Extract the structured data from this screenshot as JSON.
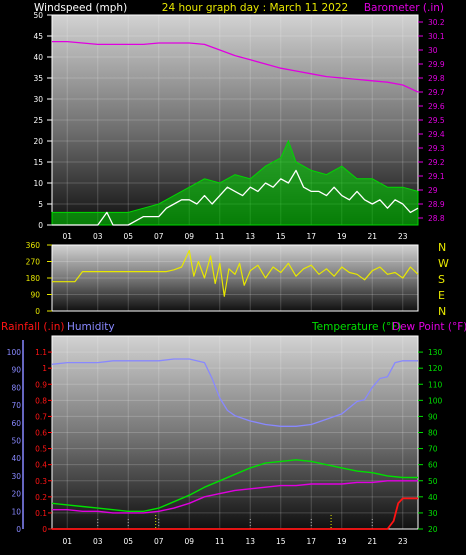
{
  "header": {
    "left": "Windspeed (mph)",
    "center": "24 hour graph day : March 11 2022",
    "right": "Barometer (.in)"
  },
  "bottom_header": {
    "rain": "Rainfall (.in)",
    "humidity": "Humidity",
    "temperature": "Temperature (°F)",
    "dewpoint": "Dew Point (°F)"
  },
  "compass": [
    "N",
    "W",
    "S",
    "E",
    "N"
  ],
  "colors": {
    "wind": "#ffffff",
    "gust_fill": "#00d800",
    "barometer": "#e000e0",
    "direction": "#e8e800",
    "rain": "#ff1414",
    "humidity": "#8888ff",
    "temperature": "#00e000",
    "dewpoint": "#e000e0",
    "center_title": "#e8e800",
    "header_text": "#ffffff"
  },
  "chart_data": [
    {
      "type": "line",
      "title": "24 hour graph day : March 11 2022",
      "xlabel": "",
      "x_ticks": [
        "01",
        "03",
        "05",
        "07",
        "09",
        "11",
        "13",
        "15",
        "17",
        "19",
        "21",
        "23"
      ],
      "xlim": [
        0,
        24
      ],
      "ylabel": "Windspeed (mph)",
      "ylim": [
        0,
        50
      ],
      "y_ticks": [
        0,
        5,
        10,
        15,
        20,
        25,
        30,
        35,
        40,
        45,
        50
      ],
      "y2label": "Barometer (.in)",
      "y2lim": [
        28.75,
        30.25
      ],
      "y2_ticks": [
        "28.8",
        "28.9",
        "29",
        "29.1",
        "29.2",
        "29.3",
        "29.4",
        "29.5",
        "29.6",
        "29.7",
        "29.8",
        "29.9",
        "30",
        "30.1",
        "30.2"
      ],
      "grid": true,
      "series": [
        {
          "name": "Windspeed",
          "axis": "left",
          "x": [
            0,
            1,
            2,
            3,
            3.6,
            4,
            5,
            6,
            7,
            7.5,
            8,
            8.5,
            9,
            9.5,
            10,
            10.5,
            11,
            11.5,
            12,
            12.5,
            13,
            13.5,
            14,
            14.5,
            15,
            15.5,
            16,
            16.5,
            17,
            17.5,
            18,
            18.5,
            19,
            19.5,
            20,
            20.5,
            21,
            21.5,
            22,
            22.5,
            23,
            23.5,
            24
          ],
          "y": [
            0,
            0,
            0,
            0,
            3,
            0,
            0,
            2,
            2,
            4,
            5,
            6,
            6,
            5,
            7,
            5,
            7,
            9,
            8,
            7,
            9,
            8,
            10,
            9,
            11,
            10,
            13,
            9,
            8,
            8,
            7,
            9,
            7,
            6,
            8,
            6,
            5,
            6,
            4,
            6,
            5,
            3,
            4
          ]
        },
        {
          "name": "Gust",
          "axis": "left",
          "x": [
            0,
            1,
            2,
            3,
            4,
            5,
            6,
            7,
            8,
            9,
            10,
            11,
            12,
            13,
            14,
            15,
            15.5,
            16,
            16.5,
            17,
            18,
            19,
            20,
            21,
            22,
            23,
            24
          ],
          "y": [
            3,
            3,
            3,
            3,
            3,
            3,
            4,
            5,
            7,
            9,
            11,
            10,
            12,
            11,
            14,
            16,
            20,
            15,
            14,
            13,
            12,
            14,
            11,
            11,
            9,
            9,
            8
          ]
        },
        {
          "name": "Barometer",
          "axis": "right",
          "x": [
            0,
            1,
            2,
            3,
            4,
            5,
            6,
            7,
            8,
            9,
            10,
            11,
            12,
            13,
            14,
            15,
            16,
            17,
            18,
            19,
            20,
            21,
            22,
            23,
            24
          ],
          "y": [
            30.06,
            30.06,
            30.05,
            30.04,
            30.04,
            30.04,
            30.04,
            30.05,
            30.05,
            30.05,
            30.04,
            30.0,
            29.96,
            29.93,
            29.9,
            29.87,
            29.85,
            29.83,
            29.81,
            29.8,
            29.79,
            29.78,
            29.77,
            29.75,
            29.7
          ]
        }
      ]
    },
    {
      "type": "line",
      "title": "",
      "xlabel": "",
      "xlim": [
        0,
        24
      ],
      "ylabel": "",
      "ylim": [
        0,
        360
      ],
      "y_ticks": [
        0,
        90,
        180,
        270,
        360
      ],
      "grid": true,
      "series": [
        {
          "name": "Wind direction",
          "axis": "left",
          "x": [
            0,
            1,
            1.5,
            2,
            3,
            4,
            5,
            6,
            7,
            7.5,
            8,
            8.5,
            9,
            9.3,
            9.6,
            10,
            10.4,
            10.7,
            11,
            11.3,
            11.6,
            12,
            12.3,
            12.6,
            13,
            13.5,
            14,
            14.5,
            15,
            15.5,
            16,
            16.5,
            17,
            17.5,
            18,
            18.5,
            19,
            19.5,
            20,
            20.5,
            21,
            21.5,
            22,
            22.5,
            23,
            23.5,
            24
          ],
          "y": [
            160,
            160,
            160,
            215,
            215,
            215,
            215,
            215,
            215,
            215,
            225,
            240,
            330,
            190,
            270,
            180,
            300,
            150,
            260,
            80,
            230,
            200,
            260,
            140,
            220,
            250,
            180,
            240,
            210,
            260,
            190,
            230,
            250,
            200,
            230,
            190,
            240,
            210,
            200,
            170,
            220,
            240,
            200,
            210,
            180,
            240,
            200
          ]
        }
      ]
    },
    {
      "type": "line",
      "title": "",
      "xlabel": "",
      "x_ticks": [
        "01",
        "03",
        "05",
        "07",
        "09",
        "11",
        "13",
        "15",
        "17",
        "19",
        "21",
        "23"
      ],
      "xlim": [
        0,
        24
      ],
      "ylabel": "Rainfall (.in)",
      "ylim": [
        0,
        1.2
      ],
      "y_ticks": [
        0,
        0.1,
        0.2,
        0.3,
        0.4,
        0.5,
        0.6,
        0.7,
        0.8,
        0.9,
        1,
        1.1
      ],
      "humidity_ticks": [
        0,
        10,
        20,
        30,
        40,
        50,
        60,
        70,
        80,
        90,
        100
      ],
      "y2label": "Temperature (°F)",
      "y2lim": [
        20,
        140
      ],
      "y2_ticks": [
        20,
        30,
        40,
        50,
        60,
        70,
        80,
        90,
        100,
        110,
        120,
        130
      ],
      "grid": true,
      "series": [
        {
          "name": "Rainfall",
          "axis": "rain",
          "x": [
            0,
            1,
            2,
            3,
            4,
            5,
            6,
            7,
            8,
            9,
            10,
            11,
            12,
            13,
            14,
            15,
            16,
            17,
            18,
            19,
            20,
            21,
            22,
            22.4,
            22.7,
            23,
            23.5,
            24
          ],
          "y": [
            0,
            0,
            0,
            0,
            0,
            0,
            0,
            0,
            0,
            0,
            0,
            0,
            0,
            0,
            0,
            0,
            0,
            0,
            0,
            0,
            0,
            0,
            0,
            0.05,
            0.16,
            0.19,
            0.19,
            0.19
          ]
        },
        {
          "name": "Humidity",
          "axis": "humidity",
          "x": [
            0,
            1,
            2,
            3,
            4,
            5,
            6,
            7,
            8,
            9,
            10,
            10.5,
            11,
            11.5,
            12,
            13,
            14,
            15,
            16,
            17,
            18,
            19,
            20,
            20.5,
            21,
            21.5,
            22,
            22.5,
            23,
            23.5,
            24
          ],
          "y": [
            93,
            94,
            94,
            94,
            95,
            95,
            95,
            95,
            96,
            96,
            94,
            85,
            74,
            67,
            64,
            61,
            59,
            58,
            58,
            59,
            62,
            65,
            72,
            73,
            80,
            85,
            86,
            94,
            95,
            95,
            95
          ]
        },
        {
          "name": "Temperature",
          "axis": "right",
          "x": [
            0,
            1,
            2,
            3,
            4,
            5,
            6,
            7,
            8,
            9,
            10,
            11,
            12,
            13,
            14,
            15,
            16,
            17,
            18,
            19,
            20,
            21,
            22,
            23,
            24
          ],
          "y": [
            36,
            35,
            34,
            33,
            32,
            31,
            31,
            33,
            37,
            41,
            46,
            50,
            54,
            58,
            61,
            62,
            63,
            62,
            60,
            58,
            56,
            55,
            53,
            52,
            52
          ]
        },
        {
          "name": "Dew Point",
          "axis": "right",
          "x": [
            0,
            1,
            2,
            3,
            4,
            5,
            6,
            7,
            8,
            9,
            10,
            11,
            12,
            13,
            14,
            15,
            16,
            17,
            18,
            19,
            20,
            21,
            22,
            23,
            24
          ],
          "y": [
            32,
            32,
            31,
            31,
            30,
            30,
            30,
            31,
            33,
            36,
            40,
            42,
            44,
            45,
            46,
            47,
            47,
            48,
            48,
            48,
            49,
            49,
            50,
            50,
            50
          ]
        }
      ]
    }
  ]
}
